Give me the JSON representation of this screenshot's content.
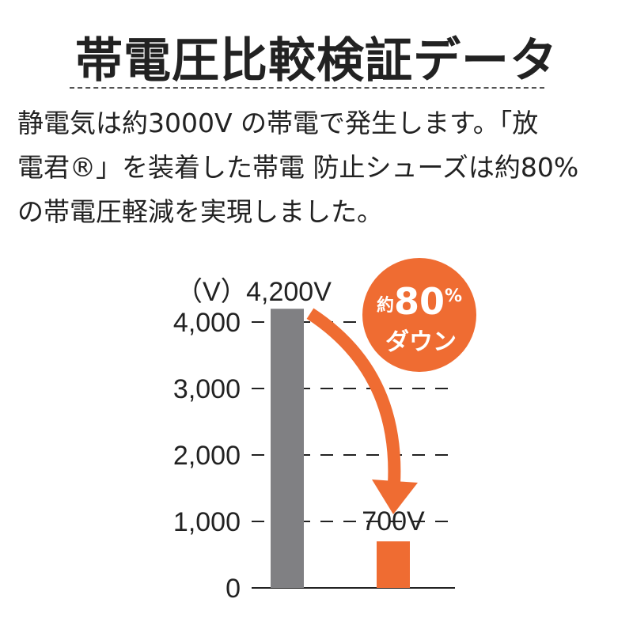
{
  "title": "帯電圧比較検証データ",
  "description": "静電気は約3000V の帯電で発生します。「放\n電君®」を装着した帯電 防止シューズは約80%\nの帯電圧軽減を実現しました。",
  "badge": {
    "prefix": "約",
    "number": "80",
    "percent": "%",
    "line2": "ダウン"
  },
  "colors": {
    "before": "#808083",
    "after": "#ef6c32",
    "badge": "#ef6c32",
    "grid": "#222222"
  },
  "chart_data": {
    "type": "bar",
    "categories": [
      "",
      ""
    ],
    "values": [
      4200,
      700
    ],
    "value_labels": [
      "4,200V",
      "700V"
    ],
    "ylabel": "（V）",
    "ylim": [
      0,
      4200
    ],
    "yticks": [
      0,
      1000,
      2000,
      3000,
      4000
    ],
    "ytick_labels": [
      "0",
      "1,000",
      "2,000",
      "3,000",
      "4,000"
    ],
    "grid": true,
    "annotation": "約80% ダウン"
  }
}
